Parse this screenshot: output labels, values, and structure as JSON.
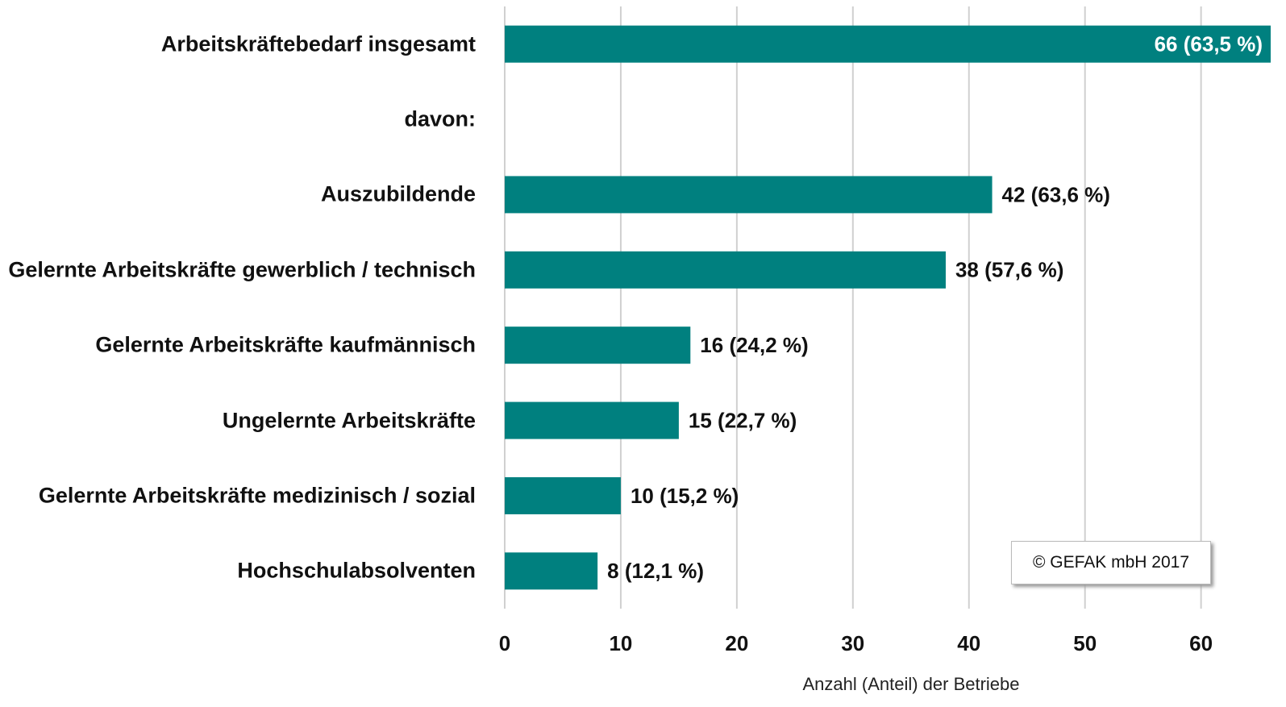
{
  "chart_data": {
    "type": "bar",
    "orientation": "horizontal",
    "categories": [
      "Arbeitskräftebedarf insgesamt",
      "davon:",
      "Auszubildende",
      "Gelernte Arbeitskräfte gewerblich / technisch",
      "Gelernte Arbeitskräfte kaufmännisch",
      "Ungelernte Arbeitskräfte",
      "Gelernte Arbeitskräfte medizinisch / sozial",
      "Hochschulabsolventen"
    ],
    "values": [
      66,
      null,
      42,
      38,
      16,
      15,
      10,
      8
    ],
    "value_labels": [
      "66 (63,5 %)",
      null,
      "42 (63,6 %)",
      "38 (57,6 %)",
      "16 (24,2 %)",
      "15 (22,7 %)",
      "10 (15,2 %)",
      "8 (12,1 %)"
    ],
    "color": "#00807f",
    "xlim": [
      0,
      66
    ],
    "xticks": [
      0,
      10,
      20,
      30,
      40,
      50,
      60
    ],
    "grid": true,
    "xlabel": "Anzahl (Anteil) der Betriebe",
    "annotation": "© GEFAK mbH 2017"
  }
}
